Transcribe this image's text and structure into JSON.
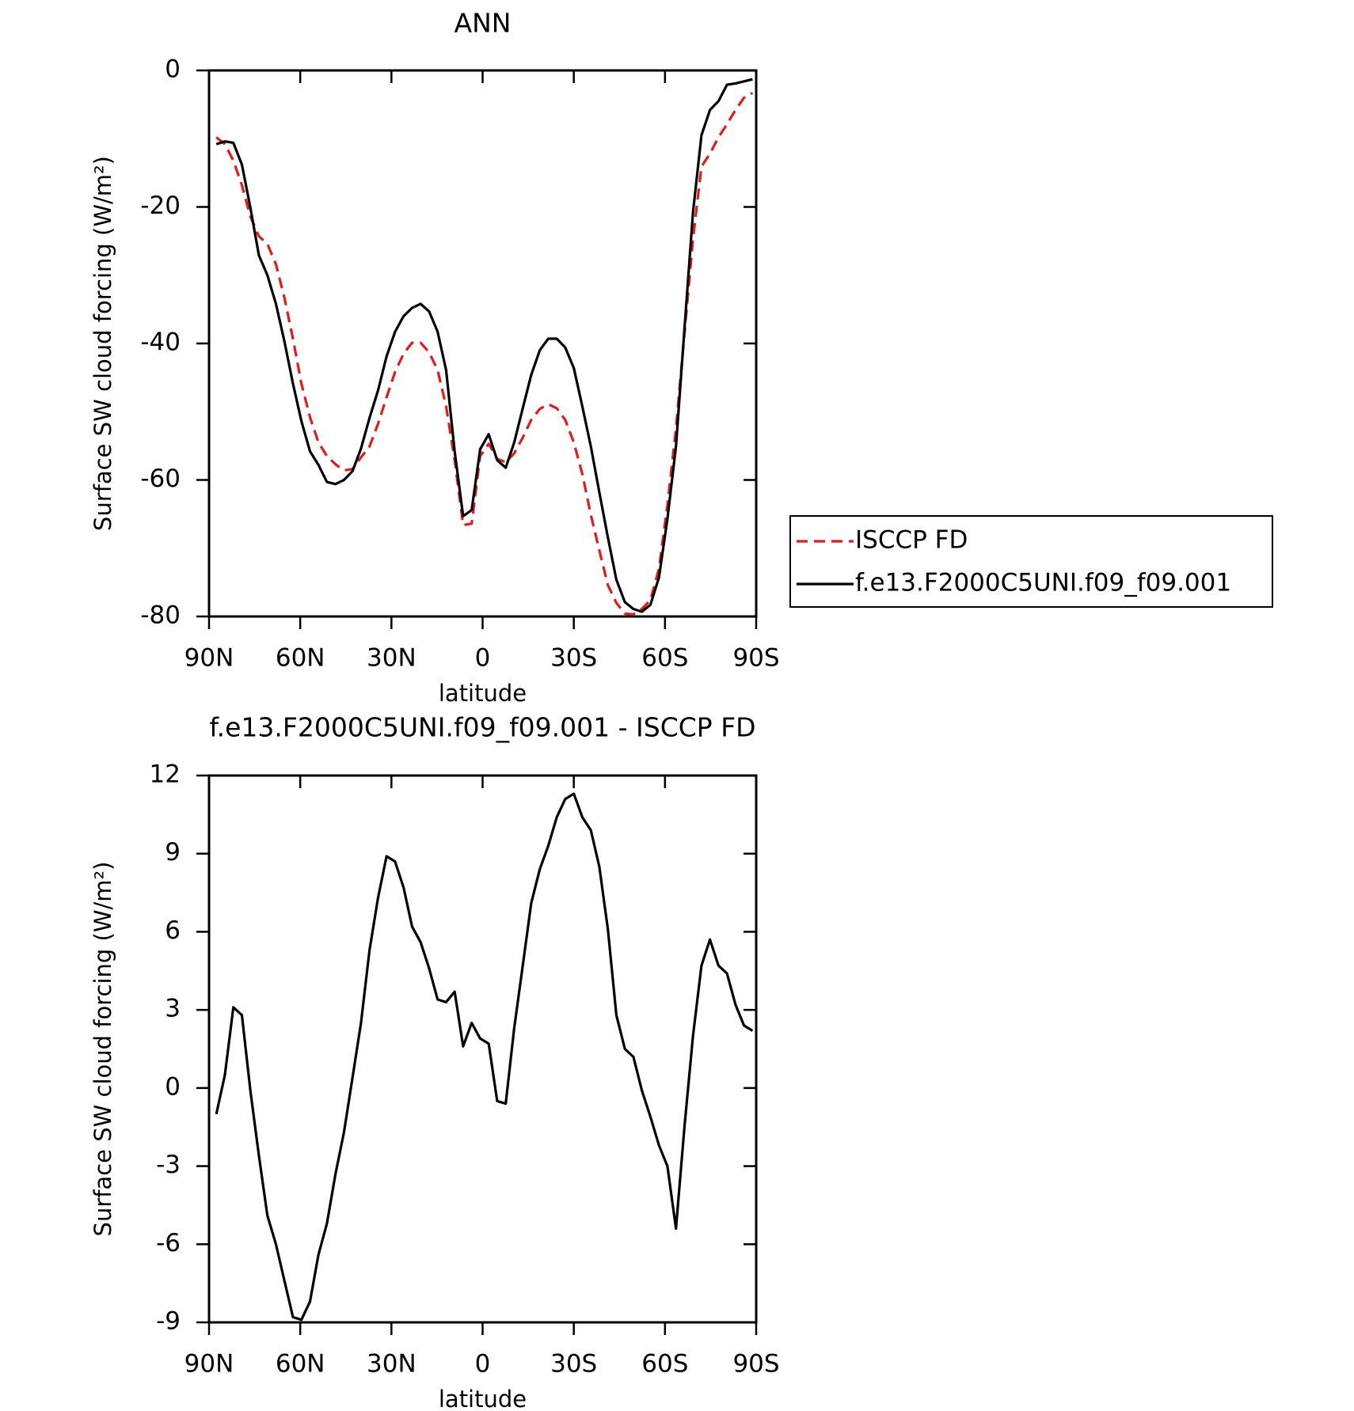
{
  "chart_data": [
    {
      "type": "line",
      "title": "ANN",
      "xlabel": "latitude",
      "ylabel": "Surface SW cloud forcing (W/m²)",
      "xlim": [
        90,
        -90
      ],
      "xticks": [
        {
          "value": 90,
          "label": "90N"
        },
        {
          "value": 60,
          "label": "60N"
        },
        {
          "value": 30,
          "label": "30N"
        },
        0,
        {
          "value": -30,
          "label": "30S"
        },
        {
          "value": -60,
          "label": "60S"
        },
        {
          "value": -90,
          "label": "90S"
        }
      ],
      "ylim": [
        -80,
        0
      ],
      "yticks": [
        -80,
        -60,
        -40,
        -20,
        0
      ],
      "legend": "right",
      "x": [
        87.6,
        84.8,
        82.0,
        79.2,
        76.4,
        73.6,
        70.8,
        68.0,
        65.2,
        62.4,
        59.6,
        56.8,
        54.0,
        51.2,
        48.4,
        45.6,
        42.8,
        40.0,
        37.2,
        34.4,
        31.6,
        28.8,
        26.0,
        23.2,
        20.4,
        17.6,
        14.8,
        12.0,
        9.2,
        6.4,
        3.6,
        0.8,
        -2.0,
        -4.8,
        -7.6,
        -10.4,
        -13.2,
        -16.0,
        -18.8,
        -21.6,
        -24.4,
        -27.2,
        -30.0,
        -32.8,
        -35.6,
        -38.4,
        -41.2,
        -44.0,
        -46.8,
        -49.6,
        -52.4,
        -55.2,
        -58.0,
        -60.8,
        -63.6,
        -66.4,
        -69.2,
        -72.0,
        -74.8,
        -77.6,
        -80.4,
        -83.2,
        -86.0,
        -88.8
      ],
      "series": [
        {
          "name": "ISCCP FD",
          "color": "#e31a1c",
          "dash": true,
          "values": [
            -9.8,
            -10.8,
            -13.2,
            -16.8,
            -21.4,
            -24.3,
            -25.4,
            -28.4,
            -33.3,
            -39.3,
            -45.9,
            -50.8,
            -54.5,
            -56.5,
            -57.7,
            -58.6,
            -58.4,
            -56.7,
            -55.1,
            -51.8,
            -47.9,
            -44.2,
            -41.5,
            -39.9,
            -39.9,
            -41.3,
            -43.9,
            -49.2,
            -57.1,
            -66.6,
            -66.4,
            -56.5,
            -54.7,
            -56.9,
            -57.4,
            -56.1,
            -53.8,
            -51.2,
            -49.6,
            -48.9,
            -49.5,
            -51.2,
            -54.5,
            -59.1,
            -65.1,
            -70.3,
            -75.4,
            -78.0,
            -79.6,
            -79.7,
            -78.9,
            -77.6,
            -73.0,
            -63.7,
            -52.5,
            -38.6,
            -24.7,
            -14.1,
            -12.2,
            -9.8,
            -7.9,
            -5.8,
            -4.0,
            -3.3
          ]
        },
        {
          "name": "f.e13.F2000C5UNI.f09_f09.001",
          "color": "#000000",
          "dash": false,
          "values": [
            -10.8,
            -10.4,
            -10.6,
            -13.8,
            -20.1,
            -27.1,
            -30.0,
            -34.2,
            -39.7,
            -45.9,
            -51.4,
            -55.8,
            -57.8,
            -60.3,
            -60.6,
            -60.0,
            -58.7,
            -55.4,
            -50.9,
            -46.9,
            -41.9,
            -38.3,
            -36.0,
            -34.8,
            -34.2,
            -35.3,
            -38.3,
            -43.9,
            -55.8,
            -65.3,
            -64.4,
            -55.5,
            -53.3,
            -57.1,
            -58.2,
            -54.5,
            -49.5,
            -44.6,
            -41.0,
            -39.3,
            -39.3,
            -40.6,
            -43.6,
            -49.2,
            -55.1,
            -61.8,
            -68.4,
            -74.6,
            -77.9,
            -78.9,
            -79.3,
            -78.3,
            -74.3,
            -65.7,
            -55.1,
            -37.9,
            -20.8,
            -9.5,
            -5.8,
            -4.5,
            -2.1,
            -1.9,
            -1.6,
            -1.3
          ]
        }
      ]
    },
    {
      "type": "line",
      "title": "f.e13.F2000C5UNI.f09_f09.001 - ISCCP FD",
      "xlabel": "latitude",
      "ylabel": "Surface SW cloud forcing (W/m²)",
      "xlim": [
        90,
        -90
      ],
      "xticks": [
        {
          "value": 90,
          "label": "90N"
        },
        {
          "value": 60,
          "label": "60N"
        },
        {
          "value": 30,
          "label": "30N"
        },
        0,
        {
          "value": -30,
          "label": "30S"
        },
        {
          "value": -60,
          "label": "60S"
        },
        {
          "value": -90,
          "label": "90S"
        }
      ],
      "ylim": [
        -9,
        12
      ],
      "yticks": [
        -9,
        -6,
        -3,
        0,
        3,
        6,
        9,
        12
      ],
      "x": [
        87.6,
        84.8,
        82.0,
        79.2,
        76.4,
        73.6,
        70.8,
        68.0,
        65.2,
        62.4,
        59.6,
        56.8,
        54.0,
        51.2,
        48.4,
        45.6,
        42.8,
        40.0,
        37.2,
        34.4,
        31.6,
        28.8,
        26.0,
        23.2,
        20.4,
        17.6,
        14.8,
        12.0,
        9.2,
        6.4,
        3.6,
        0.8,
        -2.0,
        -4.8,
        -7.6,
        -10.4,
        -13.2,
        -16.0,
        -18.8,
        -21.6,
        -24.4,
        -27.2,
        -30.0,
        -32.8,
        -35.6,
        -38.4,
        -41.2,
        -44.0,
        -46.8,
        -49.6,
        -52.4,
        -55.2,
        -58.0,
        -60.8,
        -63.6,
        -66.4,
        -69.2,
        -72.0,
        -74.8,
        -77.6,
        -80.4,
        -83.2,
        -86.0,
        -88.8
      ],
      "series": [
        {
          "color": "#000000",
          "dash": false,
          "values": [
            -1.0,
            0.5,
            3.1,
            2.8,
            -0.1,
            -2.6,
            -4.9,
            -6.0,
            -7.4,
            -8.8,
            -8.9,
            -8.2,
            -6.4,
            -5.2,
            -3.3,
            -1.7,
            0.4,
            2.5,
            5.3,
            7.3,
            8.9,
            8.7,
            7.7,
            6.2,
            5.6,
            4.6,
            3.4,
            3.3,
            3.7,
            1.6,
            2.5,
            1.9,
            1.7,
            -0.5,
            -0.6,
            2.3,
            4.7,
            7.1,
            8.4,
            9.3,
            10.4,
            11.1,
            11.3,
            10.4,
            9.9,
            8.5,
            6.1,
            2.8,
            1.5,
            1.2,
            -0.1,
            -1.1,
            -2.2,
            -3.0,
            -5.4,
            -1.5,
            2.0,
            4.7,
            5.7,
            4.7,
            4.4,
            3.2,
            2.4,
            2.2
          ]
        }
      ]
    }
  ]
}
